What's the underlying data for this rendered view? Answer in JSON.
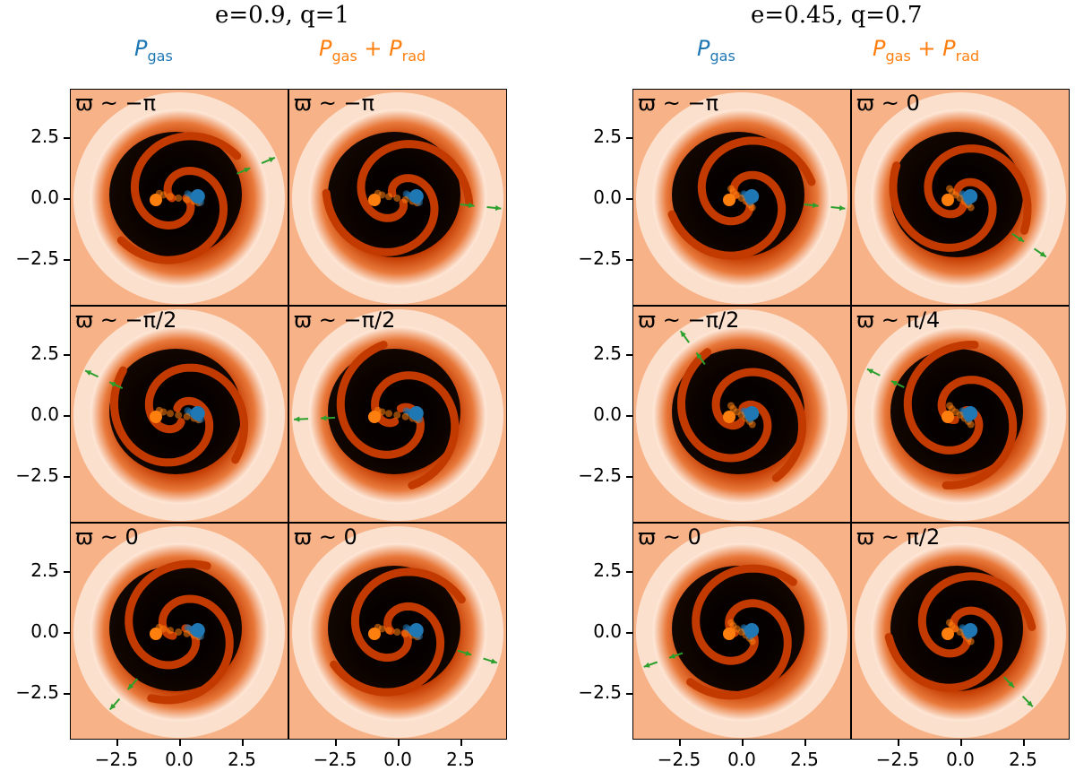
{
  "groups": [
    {
      "title": "e=0.9, q=1",
      "columns": [
        {
          "label_main": "P",
          "label_sub": "gas",
          "label_rest": ""
        },
        {
          "label_main": "P",
          "label_sub": "gas",
          "label_rest": " + ",
          "label_main2": "P",
          "label_sub2": "rad"
        }
      ],
      "rows": [
        {
          "labels": [
            "ϖ ~ −π",
            "ϖ ~ −π"
          ]
        },
        {
          "labels": [
            "ϖ ~ −π/2",
            "ϖ ~ −π/2"
          ]
        },
        {
          "labels": [
            "ϖ ~ 0",
            "ϖ ~ 0"
          ]
        }
      ]
    },
    {
      "title": "e=0.45, q=0.7",
      "columns": [
        {
          "label_main": "P",
          "label_sub": "gas",
          "label_rest": ""
        },
        {
          "label_main": "P",
          "label_sub": "gas",
          "label_rest": " + ",
          "label_main2": "P",
          "label_sub2": "rad"
        }
      ],
      "rows": [
        {
          "labels": [
            "ϖ ~ −π",
            "ϖ ~ 0"
          ]
        },
        {
          "labels": [
            "ϖ ~ −π/2",
            "ϖ ~ π/4"
          ]
        },
        {
          "labels": [
            "ϖ ~ 0",
            "ϖ ~ π/2"
          ]
        }
      ]
    }
  ],
  "y_ticks": [
    "2.5",
    "0.0",
    "−2.5"
  ],
  "x_ticks": [
    "−2.5",
    "0.0",
    "2.5"
  ],
  "colors": {
    "gas": "#1f77b4",
    "rad": "#ff7f0e",
    "arrow": "#2ca02c",
    "dense": "#000000",
    "disk": "#c23a00",
    "bg": "#f7b387"
  }
}
